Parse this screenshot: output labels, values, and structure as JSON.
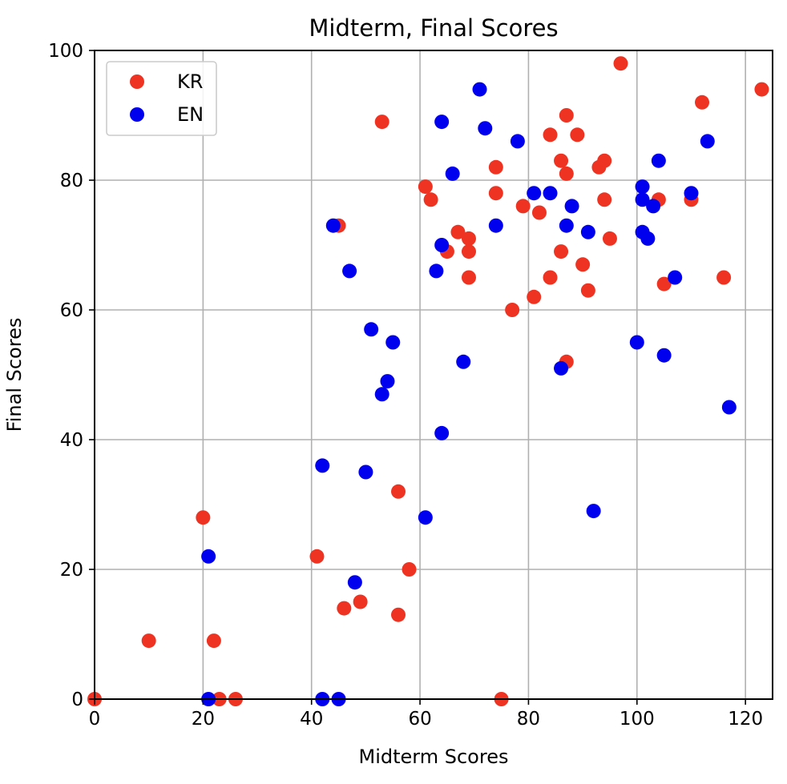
{
  "chart_data": {
    "type": "scatter",
    "title": "Midterm, Final Scores",
    "xlabel": "Midterm Scores",
    "ylabel": "Final Scores",
    "xlim": [
      0,
      125
    ],
    "ylim": [
      0,
      100
    ],
    "xticks": [
      0,
      20,
      40,
      60,
      80,
      100,
      120
    ],
    "yticks": [
      0,
      20,
      40,
      60,
      80,
      100
    ],
    "grid": true,
    "legend_position": "upper-left",
    "series": [
      {
        "name": "KR",
        "color": "#ee3322",
        "points": [
          [
            0,
            0
          ],
          [
            10,
            9
          ],
          [
            20,
            28
          ],
          [
            22,
            9
          ],
          [
            23,
            0
          ],
          [
            26,
            0
          ],
          [
            41,
            22
          ],
          [
            45,
            73
          ],
          [
            46,
            14
          ],
          [
            49,
            15
          ],
          [
            53,
            89
          ],
          [
            56,
            32
          ],
          [
            56,
            13
          ],
          [
            58,
            20
          ],
          [
            61,
            79
          ],
          [
            62,
            77
          ],
          [
            65,
            69
          ],
          [
            67,
            72
          ],
          [
            69,
            71
          ],
          [
            69,
            69
          ],
          [
            69,
            65
          ],
          [
            74,
            82
          ],
          [
            74,
            78
          ],
          [
            75,
            0
          ],
          [
            77,
            60
          ],
          [
            79,
            76
          ],
          [
            81,
            62
          ],
          [
            82,
            75
          ],
          [
            84,
            87
          ],
          [
            84,
            65
          ],
          [
            86,
            83
          ],
          [
            86,
            69
          ],
          [
            87,
            90
          ],
          [
            87,
            81
          ],
          [
            87,
            52
          ],
          [
            89,
            87
          ],
          [
            90,
            67
          ],
          [
            91,
            63
          ],
          [
            93,
            82
          ],
          [
            94,
            83
          ],
          [
            94,
            77
          ],
          [
            95,
            71
          ],
          [
            97,
            98
          ],
          [
            104,
            77
          ],
          [
            105,
            64
          ],
          [
            110,
            77
          ],
          [
            112,
            92
          ],
          [
            116,
            65
          ],
          [
            123,
            94
          ]
        ]
      },
      {
        "name": "EN",
        "color": "#0000ee",
        "points": [
          [
            21,
            22
          ],
          [
            21,
            0
          ],
          [
            42,
            36
          ],
          [
            42,
            0
          ],
          [
            44,
            73
          ],
          [
            45,
            0
          ],
          [
            47,
            66
          ],
          [
            48,
            18
          ],
          [
            50,
            35
          ],
          [
            51,
            57
          ],
          [
            53,
            47
          ],
          [
            54,
            49
          ],
          [
            55,
            55
          ],
          [
            61,
            28
          ],
          [
            63,
            66
          ],
          [
            64,
            89
          ],
          [
            64,
            70
          ],
          [
            64,
            41
          ],
          [
            66,
            81
          ],
          [
            68,
            52
          ],
          [
            71,
            94
          ],
          [
            72,
            88
          ],
          [
            74,
            73
          ],
          [
            78,
            86
          ],
          [
            81,
            78
          ],
          [
            84,
            78
          ],
          [
            86,
            51
          ],
          [
            87,
            73
          ],
          [
            88,
            76
          ],
          [
            91,
            72
          ],
          [
            92,
            29
          ],
          [
            100,
            55
          ],
          [
            101,
            79
          ],
          [
            101,
            77
          ],
          [
            101,
            72
          ],
          [
            102,
            71
          ],
          [
            103,
            76
          ],
          [
            104,
            83
          ],
          [
            105,
            53
          ],
          [
            107,
            65
          ],
          [
            110,
            78
          ],
          [
            113,
            86
          ],
          [
            117,
            45
          ]
        ]
      }
    ]
  }
}
